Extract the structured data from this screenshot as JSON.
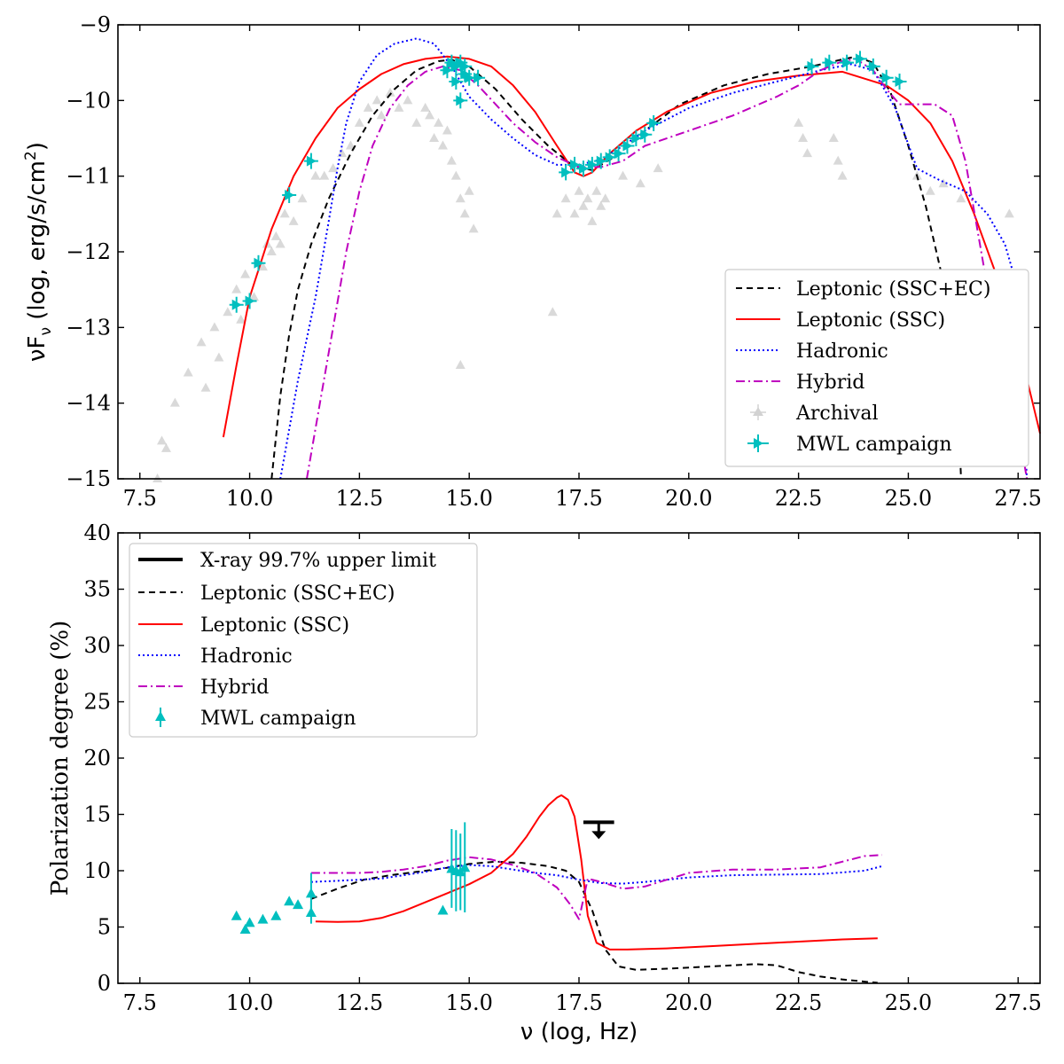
{
  "chart_data": [
    {
      "type": "line",
      "xlabel": "",
      "ylabel": "νF_ν (log, erg/s/cm²)",
      "ylabel_parts": {
        "main": "νF",
        "sub": "ν",
        "units": " (log, erg/s/cm",
        "sup": "2",
        "close": ")"
      },
      "xlim": [
        7.0,
        28.0
      ],
      "ylim": [
        -15,
        -9
      ],
      "xticks": [
        "7.5",
        "10.0",
        "12.5",
        "15.0",
        "17.5",
        "20.0",
        "22.5",
        "25.0",
        "27.5"
      ],
      "xtick_values": [
        7.5,
        10.0,
        12.5,
        15.0,
        17.5,
        20.0,
        22.5,
        25.0,
        27.5
      ],
      "yticks": [
        "−15",
        "−14",
        "−13",
        "−12",
        "−11",
        "−10",
        "−9"
      ],
      "ytick_values": [
        -15,
        -14,
        -13,
        -12,
        -11,
        -10,
        -9
      ],
      "legend_location": "lower-right",
      "series": [
        {
          "name": "Leptonic (SSC+EC)",
          "color": "#000000",
          "style": "dashed",
          "x": [
            10.5,
            10.7,
            10.9,
            11.1,
            11.4,
            11.8,
            12.3,
            12.8,
            13.3,
            13.8,
            14.3,
            14.6,
            15.0,
            15.6,
            16.2,
            16.8,
            17.4,
            17.8,
            18.3,
            19.0,
            19.8,
            20.8,
            21.8,
            22.8,
            23.4,
            23.8,
            24.2,
            24.6,
            25.0,
            25.4,
            25.8,
            26.0,
            26.15,
            26.2
          ],
          "y": [
            -15.0,
            -13.9,
            -13.1,
            -12.5,
            -11.9,
            -11.3,
            -10.7,
            -10.2,
            -9.85,
            -9.6,
            -9.48,
            -9.46,
            -9.55,
            -9.85,
            -10.25,
            -10.6,
            -10.88,
            -10.92,
            -10.75,
            -10.4,
            -10.05,
            -9.8,
            -9.65,
            -9.55,
            -9.47,
            -9.42,
            -9.5,
            -9.9,
            -10.6,
            -11.4,
            -12.4,
            -13.4,
            -14.3,
            -15.0
          ]
        },
        {
          "name": "Leptonic (SSC)",
          "color": "#ff0000",
          "style": "solid",
          "x": [
            9.4,
            9.7,
            10.0,
            10.5,
            11.0,
            11.5,
            12.0,
            12.5,
            13.0,
            13.5,
            14.0,
            14.5,
            15.0,
            15.5,
            16.0,
            16.5,
            17.0,
            17.4,
            17.6,
            17.8,
            18.2,
            18.8,
            19.5,
            20.5,
            21.5,
            22.5,
            23.5,
            24.5,
            25.0,
            25.5,
            26.0,
            26.5,
            27.0,
            27.5,
            28.0
          ],
          "y": [
            -14.45,
            -13.5,
            -12.6,
            -11.7,
            -11.0,
            -10.5,
            -10.1,
            -9.85,
            -9.65,
            -9.52,
            -9.45,
            -9.42,
            -9.45,
            -9.55,
            -9.8,
            -10.15,
            -10.6,
            -10.95,
            -11.0,
            -10.95,
            -10.7,
            -10.4,
            -10.15,
            -9.9,
            -9.75,
            -9.67,
            -9.62,
            -9.8,
            -10.0,
            -10.3,
            -10.8,
            -11.5,
            -12.3,
            -13.2,
            -14.4
          ]
        },
        {
          "name": "Hadronic",
          "color": "#0000ff",
          "style": "dotted",
          "x": [
            10.7,
            11.1,
            11.5,
            11.8,
            12.0,
            12.2,
            12.5,
            12.9,
            13.3,
            13.8,
            14.2,
            14.6,
            15.0,
            15.5,
            16.0,
            16.5,
            17.0,
            17.5,
            18.0,
            18.5,
            19.0,
            20.0,
            21.0,
            22.0,
            23.0,
            23.7,
            24.2,
            24.7,
            25.2,
            25.7,
            26.3,
            26.8,
            27.2,
            27.5,
            27.7
          ],
          "y": [
            -15.0,
            -13.7,
            -12.6,
            -11.6,
            -10.9,
            -10.3,
            -9.75,
            -9.4,
            -9.25,
            -9.18,
            -9.25,
            -9.55,
            -9.95,
            -10.25,
            -10.5,
            -10.72,
            -10.85,
            -10.85,
            -10.78,
            -10.6,
            -10.4,
            -10.1,
            -9.9,
            -9.75,
            -9.6,
            -9.52,
            -9.6,
            -10.1,
            -10.9,
            -11.05,
            -11.2,
            -11.5,
            -11.9,
            -12.5,
            -15.0
          ]
        },
        {
          "name": "Hybrid",
          "color": "#bf00bf",
          "style": "dashdot",
          "x": [
            11.3,
            11.6,
            11.9,
            12.2,
            12.5,
            12.8,
            13.2,
            13.6,
            14.0,
            14.4,
            14.8,
            15.2,
            15.6,
            16.0,
            16.5,
            17.0,
            17.5,
            18.0,
            18.5,
            19.0,
            20.0,
            21.0,
            22.0,
            22.5,
            23.0,
            23.5,
            23.8,
            24.2,
            24.5,
            24.8,
            25.2,
            25.6,
            26.0,
            26.3,
            26.6,
            26.9,
            27.2,
            27.5,
            27.7
          ],
          "y": [
            -15.0,
            -14.0,
            -13.0,
            -12.0,
            -11.2,
            -10.6,
            -10.1,
            -9.8,
            -9.62,
            -9.55,
            -9.6,
            -9.8,
            -10.05,
            -10.3,
            -10.55,
            -10.75,
            -10.88,
            -10.88,
            -10.8,
            -10.6,
            -10.4,
            -10.2,
            -9.95,
            -9.8,
            -9.6,
            -9.48,
            -9.45,
            -9.6,
            -9.85,
            -10.05,
            -10.05,
            -10.05,
            -10.2,
            -10.8,
            -11.8,
            -12.8,
            -13.6,
            -14.3,
            -15.0
          ]
        }
      ],
      "scatter": [
        {
          "name": "Archival",
          "color": "#808080",
          "marker": "triangle",
          "x": [
            7.9,
            8.0,
            8.1,
            8.3,
            8.6,
            8.9,
            9.0,
            9.2,
            9.3,
            9.5,
            9.7,
            9.8,
            9.9,
            10.1,
            10.3,
            10.4,
            10.5,
            10.6,
            10.7,
            10.8,
            11.0,
            11.2,
            11.5,
            11.7,
            11.9,
            12.1,
            12.3,
            12.5,
            12.7,
            12.9,
            13.0,
            13.2,
            13.4,
            13.6,
            13.8,
            14.0,
            14.1,
            14.2,
            14.3,
            14.4,
            14.5,
            14.6,
            14.7,
            14.8,
            14.9,
            15.0,
            15.1,
            17.0,
            17.2,
            17.4,
            17.5,
            17.6,
            17.7,
            17.8,
            17.9,
            18.0,
            18.1,
            18.5,
            18.9,
            19.3,
            22.5,
            22.6,
            22.7,
            23.3,
            23.4,
            23.5,
            25.2,
            25.5,
            25.8,
            26.2,
            27.3,
            14.8,
            16.9
          ],
          "y": [
            -15.0,
            -14.5,
            -14.6,
            -14.0,
            -13.6,
            -13.2,
            -13.8,
            -13.0,
            -13.4,
            -12.8,
            -12.5,
            -12.9,
            -12.3,
            -12.6,
            -12.2,
            -11.9,
            -12.0,
            -11.8,
            -11.9,
            -11.5,
            -11.6,
            -11.3,
            -11.0,
            -11.0,
            -10.9,
            -10.7,
            -10.6,
            -10.3,
            -10.1,
            -10.0,
            -10.2,
            -9.9,
            -10.1,
            -10.0,
            -10.3,
            -10.1,
            -10.2,
            -10.5,
            -10.3,
            -10.6,
            -10.4,
            -10.8,
            -11.0,
            -11.3,
            -11.5,
            -11.2,
            -11.7,
            -11.5,
            -11.3,
            -11.5,
            -11.2,
            -11.4,
            -11.3,
            -11.6,
            -11.2,
            -11.4,
            -11.3,
            -11.0,
            -11.1,
            -10.9,
            -10.3,
            -10.5,
            -10.7,
            -10.5,
            -10.8,
            -11.0,
            -11.0,
            -11.2,
            -11.1,
            -11.3,
            -11.5,
            -13.5,
            -12.8
          ]
        },
        {
          "name": "MWL campaign",
          "color": "#00bfbf",
          "marker": "cross",
          "x": [
            9.7,
            10.0,
            10.2,
            10.9,
            11.4,
            14.5,
            14.7,
            14.8,
            14.9,
            15.0,
            15.2,
            14.6,
            14.7,
            14.8,
            14.9,
            17.2,
            17.4,
            17.6,
            17.8,
            18.0,
            18.2,
            18.4,
            18.6,
            18.8,
            19.0,
            19.2,
            22.8,
            23.2,
            23.6,
            23.9,
            24.2,
            24.5,
            24.8
          ],
          "y": [
            -12.7,
            -12.65,
            -12.15,
            -11.25,
            -10.8,
            -9.6,
            -9.55,
            -9.5,
            -9.65,
            -9.7,
            -9.7,
            -9.5,
            -9.75,
            -10.0,
            -9.55,
            -10.95,
            -10.85,
            -10.9,
            -10.85,
            -10.8,
            -10.75,
            -10.7,
            -10.6,
            -10.5,
            -10.45,
            -10.3,
            -9.55,
            -9.5,
            -9.5,
            -9.45,
            -9.55,
            -9.7,
            -9.75
          ]
        }
      ]
    },
    {
      "type": "line",
      "xlabel": "ν (log, Hz)",
      "ylabel": "Polarization degree (%)",
      "xlim": [
        7.0,
        28.0
      ],
      "ylim": [
        0,
        40
      ],
      "xticks": [
        "7.5",
        "10.0",
        "12.5",
        "15.0",
        "17.5",
        "20.0",
        "22.5",
        "25.0",
        "27.5"
      ],
      "xtick_values": [
        7.5,
        10.0,
        12.5,
        15.0,
        17.5,
        20.0,
        22.5,
        25.0,
        27.5
      ],
      "yticks": [
        "0",
        "5",
        "10",
        "15",
        "20",
        "25",
        "30",
        "35",
        "40"
      ],
      "ytick_values": [
        0,
        5,
        10,
        15,
        20,
        25,
        30,
        35,
        40
      ],
      "legend_location": "upper-left",
      "upper_limit": {
        "name": "X-ray 99.7% upper limit",
        "x_range": [
          17.6,
          18.3
        ],
        "y": 14.3,
        "color": "#000000"
      },
      "series": [
        {
          "name": "Leptonic (SSC+EC)",
          "color": "#000000",
          "style": "dashed",
          "x": [
            11.4,
            12.0,
            12.6,
            13.2,
            13.8,
            14.4,
            15.0,
            15.6,
            16.2,
            16.8,
            17.2,
            17.5,
            17.8,
            18.1,
            18.4,
            18.8,
            19.5,
            20.5,
            21.5,
            22.0,
            22.5,
            23.0,
            23.5,
            24.0,
            24.3
          ],
          "y": [
            7.5,
            8.4,
            9.2,
            9.6,
            9.9,
            10.2,
            10.6,
            10.8,
            10.7,
            10.4,
            10.0,
            9.0,
            6.5,
            3.0,
            1.5,
            1.2,
            1.3,
            1.5,
            1.7,
            1.6,
            1.0,
            0.6,
            0.35,
            0.15,
            0.05
          ]
        },
        {
          "name": "Leptonic (SSC)",
          "color": "#ff0000",
          "style": "solid",
          "x": [
            11.5,
            12.0,
            12.5,
            13.0,
            13.5,
            14.0,
            14.5,
            15.0,
            15.5,
            16.0,
            16.3,
            16.6,
            16.8,
            17.0,
            17.1,
            17.25,
            17.4,
            17.55,
            17.7,
            17.9,
            18.2,
            18.6,
            19.5,
            20.5,
            21.5,
            22.5,
            23.5,
            24.3
          ],
          "y": [
            5.5,
            5.45,
            5.5,
            5.8,
            6.4,
            7.2,
            8.0,
            8.8,
            9.8,
            11.5,
            13.0,
            14.8,
            15.8,
            16.5,
            16.7,
            16.3,
            14.8,
            11.0,
            6.0,
            3.6,
            3.0,
            3.0,
            3.1,
            3.3,
            3.5,
            3.7,
            3.9,
            4.0
          ]
        },
        {
          "name": "Hadronic",
          "color": "#0000ff",
          "style": "dotted",
          "x": [
            11.4,
            12.0,
            12.5,
            13.0,
            13.5,
            14.0,
            14.5,
            15.0,
            15.5,
            16.0,
            16.5,
            17.0,
            17.5,
            18.0,
            18.5,
            19.0,
            20.0,
            21.0,
            22.0,
            23.0,
            24.0,
            24.4
          ],
          "y": [
            9.0,
            9.1,
            9.2,
            9.3,
            9.6,
            9.9,
            10.3,
            10.5,
            10.4,
            10.1,
            9.8,
            9.6,
            9.2,
            8.9,
            8.85,
            9.0,
            9.4,
            9.6,
            9.65,
            9.7,
            10.0,
            10.4
          ]
        },
        {
          "name": "Hybrid",
          "color": "#bf00bf",
          "style": "dashdot",
          "x": [
            11.4,
            12.0,
            12.5,
            13.0,
            13.5,
            14.0,
            14.5,
            15.0,
            15.5,
            16.0,
            16.5,
            17.0,
            17.3,
            17.5,
            17.6,
            17.7,
            18.0,
            18.5,
            19.0,
            19.5,
            20.0,
            21.0,
            22.0,
            23.0,
            23.5,
            24.0,
            24.4
          ],
          "y": [
            9.8,
            9.8,
            9.8,
            9.9,
            10.1,
            10.4,
            10.9,
            11.2,
            11.0,
            10.5,
            9.8,
            8.5,
            7.0,
            5.7,
            7.5,
            9.3,
            9.0,
            8.4,
            8.6,
            9.2,
            9.8,
            10.1,
            10.1,
            10.3,
            10.8,
            11.3,
            11.4
          ]
        }
      ],
      "scatter": [
        {
          "name": "MWL campaign",
          "color": "#00bfbf",
          "marker": "triangle",
          "x": [
            9.7,
            9.9,
            10.0,
            10.3,
            10.6,
            10.9,
            11.1,
            11.4,
            11.4,
            14.4,
            14.6,
            14.7,
            14.8,
            14.9
          ],
          "y": [
            6.0,
            4.8,
            5.4,
            5.7,
            6.0,
            7.3,
            7.0,
            8.0,
            6.3,
            6.5,
            10.2,
            10.0,
            9.9,
            10.3
          ],
          "yerr": [
            0,
            0,
            0,
            0,
            0,
            0,
            0,
            1.8,
            1.0,
            0,
            3.5,
            3.6,
            3.4,
            4.0
          ]
        }
      ]
    }
  ]
}
